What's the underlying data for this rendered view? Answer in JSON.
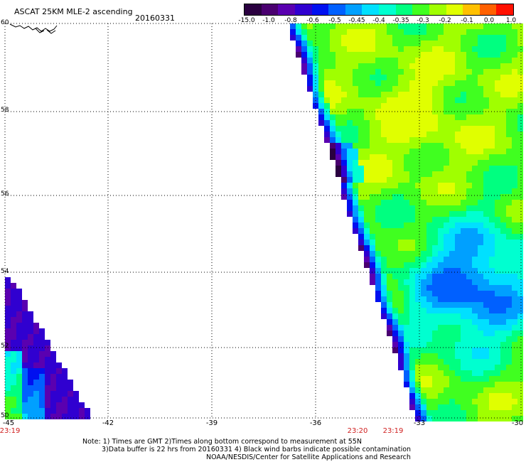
{
  "header": {
    "product": "ASCAT 25KM MLE-2 ascending",
    "date": "20160331"
  },
  "colorbar": {
    "colors": [
      "#2a0040",
      "#4a0070",
      "#5a00b0",
      "#3000d0",
      "#0010f0",
      "#0060ff",
      "#00a0ff",
      "#00e0ff",
      "#00ffd0",
      "#00ff80",
      "#40ff20",
      "#a0ff00",
      "#e0ff00",
      "#ffc000",
      "#ff6000",
      "#ff1000"
    ],
    "labels": [
      "-15.0",
      "-1.0",
      "-0.8",
      "-0.6",
      "-0.5",
      "-0.45",
      "-0.4",
      "-0.35",
      "-0.3",
      "-0.2",
      "-0.1",
      "0.0",
      "1.0"
    ]
  },
  "axes": {
    "lat_labels": [
      "60",
      "58",
      "56",
      "54",
      "52",
      "50"
    ],
    "lon_labels": [
      "-45",
      "-42",
      "-39",
      "-36",
      "-33",
      "-30"
    ]
  },
  "times": [
    {
      "text": "23:19",
      "x_lon": "-45"
    },
    {
      "text": "23:20",
      "x_lon": "-34.5"
    },
    {
      "text": "23:19",
      "x_lon": "-33.5"
    }
  ],
  "notes": {
    "line1": "Note: 1) Times are GMT 2)Times along bottom correspond to measurement at 55N",
    "line2": "3)Data buffer is 22 hrs from 20160331 4) Black wind barbs indicate possible contamination",
    "line3": "NOAA/NESDIS/Center for Satellite Applications and Research"
  }
}
